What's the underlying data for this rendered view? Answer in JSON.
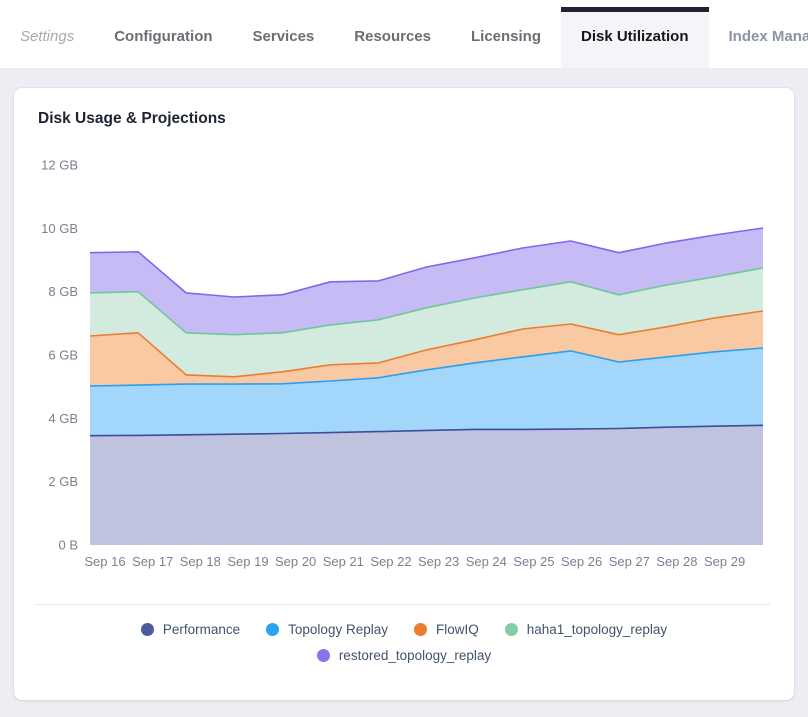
{
  "tabs": {
    "items": [
      {
        "label": "Settings",
        "active": false
      },
      {
        "label": "Configuration",
        "active": false
      },
      {
        "label": "Services",
        "active": false
      },
      {
        "label": "Resources",
        "active": false
      },
      {
        "label": "Licensing",
        "active": false
      },
      {
        "label": "Disk Utilization",
        "active": true
      },
      {
        "label": "Index Mana",
        "active": false
      }
    ]
  },
  "card": {
    "title": "Disk Usage & Projections"
  },
  "chart_data": {
    "type": "area",
    "stacked": true,
    "title": "Disk Usage & Projections",
    "unit": "GB",
    "grid": false,
    "legend_position": "bottom",
    "ylim": [
      0,
      12
    ],
    "y_ticks": [
      {
        "label": "0 B",
        "value": 0
      },
      {
        "label": "2 GB",
        "value": 2
      },
      {
        "label": "4 GB",
        "value": 4
      },
      {
        "label": "6 GB",
        "value": 6
      },
      {
        "label": "8 GB",
        "value": 8
      },
      {
        "label": "10 GB",
        "value": 10
      },
      {
        "label": "12 GB",
        "value": 12
      }
    ],
    "x_labels": [
      "Sep 16",
      "Sep 17",
      "Sep 18",
      "Sep 19",
      "Sep 20",
      "Sep 21",
      "Sep 22",
      "Sep 23",
      "Sep 24",
      "Sep 25",
      "Sep 26",
      "Sep 27",
      "Sep 28",
      "Sep 29"
    ],
    "note_points": "15 samples; area extends one interval past the last x label to the plot edge",
    "series": [
      {
        "name": "Performance",
        "color": "#4d5a9e",
        "line": "#3e4d9a",
        "fill": "#bfc3de",
        "values": [
          3.45,
          3.46,
          3.48,
          3.5,
          3.52,
          3.55,
          3.58,
          3.62,
          3.65,
          3.65,
          3.66,
          3.68,
          3.72,
          3.75,
          3.78
        ]
      },
      {
        "name": "Topology Replay",
        "color": "#29a4ef",
        "line": "#2b9ef0",
        "fill": "#a2d7fb",
        "values": [
          1.57,
          1.59,
          1.6,
          1.58,
          1.57,
          1.63,
          1.7,
          1.91,
          2.1,
          2.29,
          2.47,
          2.1,
          2.22,
          2.35,
          2.44
        ]
      },
      {
        "name": "FlowIQ",
        "color": "#ed7d2e",
        "line": "#ec7d2e",
        "fill": "#f8c9a3",
        "values": [
          1.58,
          1.65,
          0.29,
          0.23,
          0.38,
          0.51,
          0.47,
          0.63,
          0.73,
          0.88,
          0.85,
          0.86,
          0.95,
          1.07,
          1.17
        ]
      },
      {
        "name": "haha1_topology_replay",
        "color": "#85cda9",
        "line": "#6fc79b",
        "fill": "#d3ebdf",
        "values": [
          1.36,
          1.3,
          1.33,
          1.33,
          1.23,
          1.26,
          1.36,
          1.33,
          1.32,
          1.24,
          1.33,
          1.26,
          1.32,
          1.3,
          1.36
        ]
      },
      {
        "name": "restored_topology_replay",
        "color": "#8e71ec",
        "line": "#8266ee",
        "fill": "#c6bbf4",
        "values": [
          1.27,
          1.26,
          1.26,
          1.19,
          1.2,
          1.36,
          1.23,
          1.29,
          1.27,
          1.32,
          1.29,
          1.33,
          1.33,
          1.32,
          1.26
        ]
      }
    ]
  }
}
